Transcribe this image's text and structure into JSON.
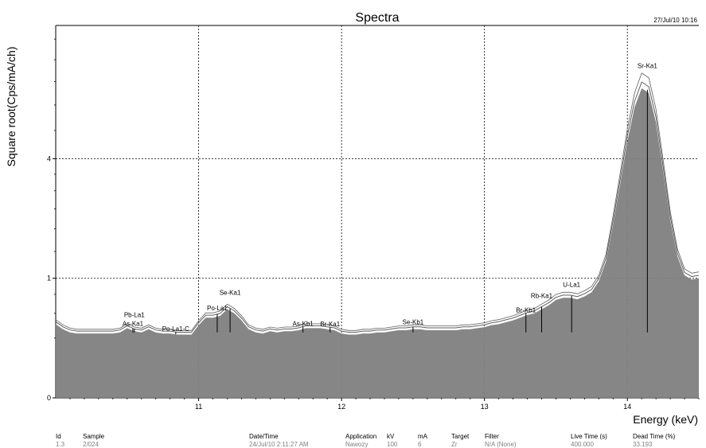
{
  "chart_data": {
    "type": "area",
    "title": "Spectra",
    "timestamp": "27/Jul/10 10:16",
    "xlabel": "Energy (keV)",
    "ylabel": "Square root(Cps/mA/ch)",
    "y_scale": "square-root",
    "xlim": [
      10.0,
      14.5
    ],
    "ylim": [
      0,
      9.7
    ],
    "x_ticks": [
      "11",
      "12",
      "13",
      "14"
    ],
    "y_ticks": [
      "0",
      "1",
      "4"
    ],
    "grid": true,
    "colors": {
      "fill": "#808080",
      "curve": "#606060",
      "grid": "#000000"
    },
    "series": [
      {
        "x": [
          10.0,
          10.05,
          10.1,
          10.15,
          10.2,
          10.25,
          10.3,
          10.35,
          10.4,
          10.45,
          10.5,
          10.55,
          10.6,
          10.65,
          10.7,
          10.75,
          10.8,
          10.85,
          10.9,
          10.95,
          11.0,
          11.05,
          11.1,
          11.15,
          11.2,
          11.25,
          11.3,
          11.35,
          11.4,
          11.45,
          11.5,
          11.55,
          11.6,
          11.65,
          11.7,
          11.75,
          11.8,
          11.85,
          11.9,
          11.95,
          12.0,
          12.05,
          12.1,
          12.15,
          12.2,
          12.25,
          12.3,
          12.35,
          12.4,
          12.45,
          12.5,
          12.55,
          12.6,
          12.65,
          12.7,
          12.75,
          12.8,
          12.85,
          12.9,
          12.95,
          13.0,
          13.05,
          13.1,
          13.15,
          13.2,
          13.25,
          13.3,
          13.35,
          13.4,
          13.45,
          13.5,
          13.55,
          13.6,
          13.65,
          13.7,
          13.75,
          13.8,
          13.85,
          13.9,
          13.95,
          14.0,
          14.05,
          14.1,
          14.15,
          14.2,
          14.25,
          14.3,
          14.35,
          14.4,
          14.45,
          14.5
        ],
        "y": [
          0.38,
          0.33,
          0.3,
          0.29,
          0.29,
          0.29,
          0.29,
          0.29,
          0.29,
          0.3,
          0.34,
          0.31,
          0.3,
          0.33,
          0.3,
          0.29,
          0.29,
          0.28,
          0.28,
          0.28,
          0.37,
          0.45,
          0.45,
          0.47,
          0.55,
          0.5,
          0.42,
          0.33,
          0.3,
          0.29,
          0.31,
          0.3,
          0.31,
          0.31,
          0.32,
          0.34,
          0.34,
          0.34,
          0.33,
          0.32,
          0.29,
          0.28,
          0.28,
          0.29,
          0.29,
          0.3,
          0.3,
          0.31,
          0.32,
          0.32,
          0.33,
          0.33,
          0.32,
          0.32,
          0.32,
          0.32,
          0.32,
          0.33,
          0.33,
          0.34,
          0.35,
          0.37,
          0.38,
          0.4,
          0.42,
          0.45,
          0.48,
          0.5,
          0.55,
          0.6,
          0.67,
          0.7,
          0.7,
          0.68,
          0.72,
          0.78,
          0.95,
          1.3,
          2.1,
          3.2,
          4.6,
          5.9,
          6.7,
          6.5,
          5.3,
          3.6,
          2.2,
          1.4,
          1.05,
          0.98,
          1.0
        ]
      }
    ],
    "peaks": [
      {
        "label": "Pb-La1",
        "x": 10.55
      },
      {
        "label": "As-Ka1",
        "x": 10.54
      },
      {
        "label": "Po-La1-C",
        "x": 10.84
      },
      {
        "label": "Se-Ka1",
        "x": 11.22
      },
      {
        "label": "Po-La1",
        "x": 11.13
      },
      {
        "label": "As-Kb1",
        "x": 11.73
      },
      {
        "label": "Br-Ka1",
        "x": 11.92
      },
      {
        "label": "Se-Kb1",
        "x": 12.5
      },
      {
        "label": "Br-Kb1",
        "x": 13.29
      },
      {
        "label": "Rb-Ka1",
        "x": 13.4
      },
      {
        "label": "U-La1",
        "x": 13.61
      },
      {
        "label": "Sr-Ka1",
        "x": 14.14
      }
    ]
  },
  "info": {
    "headers": [
      "Id",
      "Sample",
      "Date/Time",
      "Application",
      "kV",
      "mA",
      "Target",
      "Filter",
      "Live Time (s)",
      "Dead Time (%)"
    ],
    "values": [
      "1.3",
      "2/024",
      "24/Jul/10 2:11:27 AM",
      "Nawozy",
      "100",
      "6",
      "Zr",
      "N/A (None)",
      "400.000",
      "33.193"
    ]
  }
}
